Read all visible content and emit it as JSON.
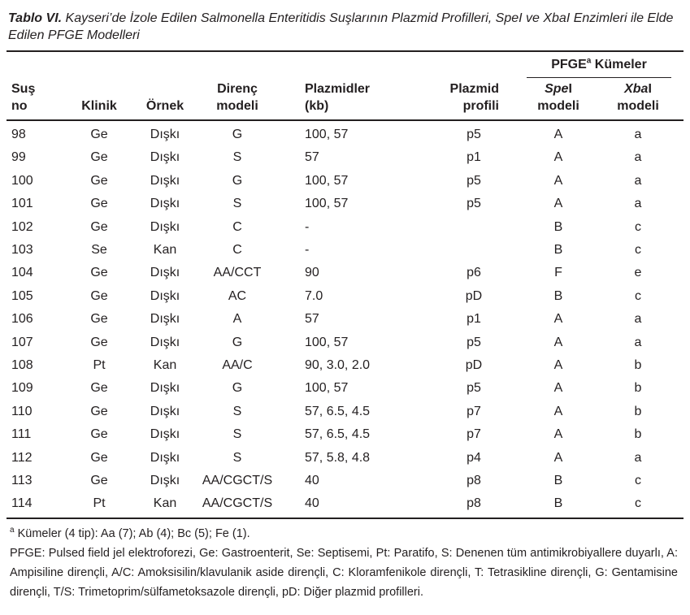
{
  "caption": {
    "label": "Tablo VI.",
    "text": "Kayseri’de İzole Edilen Salmonella Enteritidis Suşlarının Plazmid Profilleri, SpeI ve XbaI Enzimleri ile Elde Edilen PFGE Modelleri"
  },
  "table": {
    "group_header": {
      "text": "PFGE",
      "sup": "a",
      "rest": " Kümeler"
    },
    "headers": {
      "no": [
        "Suş",
        "no"
      ],
      "klinik": "Klinik",
      "ornek": "Örnek",
      "direnc": [
        "Direnç",
        "modeli"
      ],
      "plazmidler": [
        "Plazmidler",
        "(kb)"
      ],
      "profil": [
        "Plazmid",
        "profili"
      ],
      "spe": {
        "italic": "Spe",
        "rest": "I",
        "line2": "modeli"
      },
      "xba": {
        "italic": "Xba",
        "rest": "I",
        "line2": "modeli"
      }
    },
    "rows": [
      [
        "98",
        "Ge",
        "Dışkı",
        "G",
        "100, 57",
        "p5",
        "A",
        "a"
      ],
      [
        "99",
        "Ge",
        "Dışkı",
        "S",
        "57",
        "p1",
        "A",
        "a"
      ],
      [
        "100",
        "Ge",
        "Dışkı",
        "G",
        "100, 57",
        "p5",
        "A",
        "a"
      ],
      [
        "101",
        "Ge",
        "Dışkı",
        "S",
        "100, 57",
        "p5",
        "A",
        "a"
      ],
      [
        "102",
        "Ge",
        "Dışkı",
        "C",
        "-",
        null,
        "B",
        "c"
      ],
      [
        "103",
        "Se",
        "Kan",
        "C",
        "-",
        null,
        "B",
        "c"
      ],
      [
        "104",
        "Ge",
        "Dışkı",
        "AA/CCT",
        "90",
        "p6",
        "F",
        "e"
      ],
      [
        "105",
        "Ge",
        "Dışkı",
        "AC",
        "7.0",
        "pD",
        "B",
        "c"
      ],
      [
        "106",
        "Ge",
        "Dışkı",
        "A",
        "57",
        "p1",
        "A",
        "a"
      ],
      [
        "107",
        "Ge",
        "Dışkı",
        "G",
        "100, 57",
        "p5",
        "A",
        "a"
      ],
      [
        "108",
        "Pt",
        "Kan",
        "AA/C",
        "90, 3.0, 2.0",
        "pD",
        "A",
        "b"
      ],
      [
        "109",
        "Ge",
        "Dışkı",
        "G",
        "100, 57",
        "p5",
        "A",
        "b"
      ],
      [
        "110",
        "Ge",
        "Dışkı",
        "S",
        "57, 6.5, 4.5",
        "p7",
        "A",
        "b"
      ],
      [
        "111",
        "Ge",
        "Dışkı",
        "S",
        "57, 6.5, 4.5",
        "p7",
        "A",
        "b"
      ],
      [
        "112",
        "Ge",
        "Dışkı",
        "S",
        "57, 5.8, 4.8",
        "p4",
        "A",
        "a"
      ],
      [
        "113",
        "Ge",
        "Dışkı",
        "AA/CGCT/S",
        "40",
        "p8",
        "B",
        "c"
      ],
      [
        "114",
        "Pt",
        "Kan",
        "AA/CGCT/S",
        "40",
        "p8",
        "B",
        "c"
      ]
    ]
  },
  "footnotes": {
    "note_a": {
      "sup": "a",
      "text": " Kümeler (4 tip): Aa (7); Ab (4); Bc (5); Fe (1)."
    },
    "abbreviations": "PFGE: Pulsed field jel elektroforezi, Ge: Gastroenterit, Se: Septisemi, Pt: Paratifo, S: Denenen tüm antimikrobiyallere duyarlı, A: Ampisiline dirençli, A/C: Amoksisilin/klavulanik aside dirençli, C: Kloramfenikole dirençli, T: Tetrasikline dirençli, G: Gentamisine dirençli, T/S: Trimetoprim/sülfametoksazole dirençli, pD: Diğer plazmid profilleri."
  }
}
